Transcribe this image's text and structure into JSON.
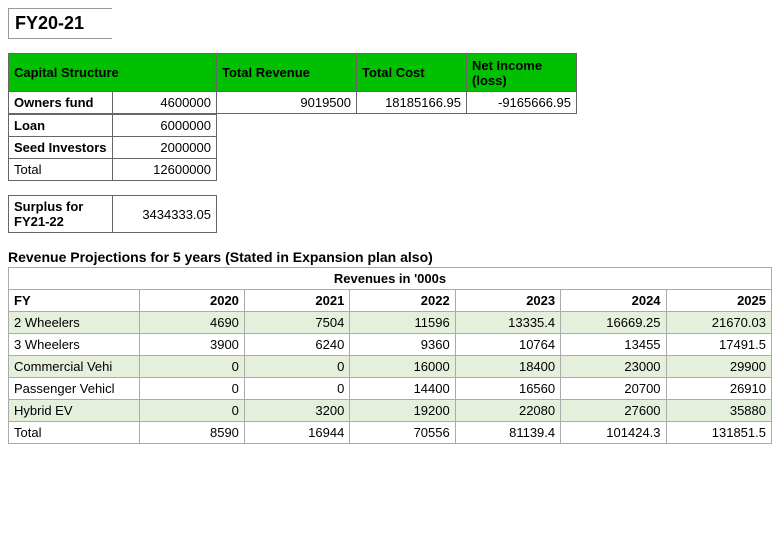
{
  "title": "FY20-21",
  "top": {
    "headers": {
      "capital_structure": "Capital Structure",
      "total_revenue": "Total Revenue",
      "total_cost": "Total Cost",
      "net_income": "Net Income (loss)"
    },
    "rows": {
      "owners_fund": {
        "label": "Owners fund",
        "value": "4600000"
      },
      "loan": {
        "label": "Loan",
        "value": "6000000"
      },
      "seed": {
        "label": "Seed Investors",
        "value": "2000000"
      },
      "total": {
        "label": "Total",
        "value": "12600000"
      }
    },
    "total_revenue": "9019500",
    "total_cost": "18185166.95",
    "net_income": "-9165666.95"
  },
  "surplus": {
    "label": "Surplus for FY21-22",
    "value": "3434333.05"
  },
  "projections": {
    "title": "Revenue Projections for 5 years (Stated in Expansion plan also)",
    "subheader": "Revenues in '000s",
    "fy_label": "FY",
    "years": [
      "2020",
      "2021",
      "2022",
      "2023",
      "2024",
      "2025"
    ],
    "rows": [
      {
        "label": "2 Wheelers",
        "vals": [
          "4690",
          "7504",
          "11596",
          "13335.4",
          "16669.25",
          "21670.03"
        ]
      },
      {
        "label": "3 Wheelers",
        "vals": [
          "3900",
          "6240",
          "9360",
          "10764",
          "13455",
          "17491.5"
        ]
      },
      {
        "label": "Commercial Vehi",
        "vals": [
          "0",
          "0",
          "16000",
          "18400",
          "23000",
          "29900"
        ]
      },
      {
        "label": "Passenger Vehicl",
        "vals": [
          "0",
          "0",
          "14400",
          "16560",
          "20700",
          "26910"
        ]
      },
      {
        "label": "Hybrid EV",
        "vals": [
          "0",
          "3200",
          "19200",
          "22080",
          "27600",
          "35880"
        ]
      },
      {
        "label": "Total",
        "vals": [
          "8590",
          "16944",
          "70556",
          "81139.4",
          "101424.3",
          "131851.5"
        ]
      }
    ],
    "shaded_row_indices": [
      0,
      2,
      4
    ],
    "colors": {
      "header_bg": "#00c000",
      "row_shade": "#e4efdc",
      "border": "#aaaaaa",
      "top_border": "#666666",
      "background": "#ffffff",
      "text": "#000000"
    }
  }
}
